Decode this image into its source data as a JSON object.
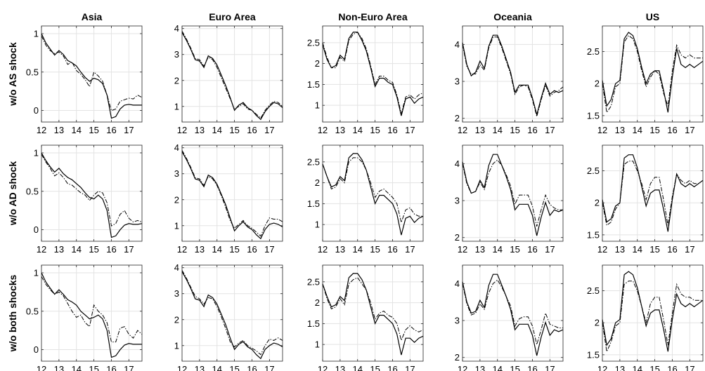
{
  "chart_data": {
    "type": "line",
    "columns": [
      "Asia",
      "Euro Area",
      "Non-Euro Area",
      "Oceania",
      "US"
    ],
    "rows": [
      "w/o AS shock",
      "w/o AD shock",
      "w/o both shocks"
    ],
    "x_ticks": [
      "12",
      "13",
      "14",
      "15",
      "16",
      "17"
    ],
    "x": [
      12.0,
      12.25,
      12.5,
      12.75,
      13.0,
      13.25,
      13.5,
      13.75,
      14.0,
      14.25,
      14.5,
      14.75,
      15.0,
      15.25,
      15.5,
      15.75,
      16.0,
      16.25,
      16.5,
      16.75,
      17.0,
      17.25,
      17.5,
      17.75
    ],
    "xlim": [
      12,
      17.75
    ],
    "grid": true,
    "line_styles": {
      "actual": "solid",
      "counterfactual": "dash-dot"
    },
    "panels": [
      [
        {
          "ylim": [
            -0.15,
            1.1
          ],
          "yticks": [
            0,
            0.5,
            1
          ],
          "ytick_labels": [
            "0",
            "0.5",
            "1"
          ],
          "actual": [
            1.0,
            0.88,
            0.8,
            0.72,
            0.78,
            0.73,
            0.65,
            0.62,
            0.58,
            0.5,
            0.43,
            0.38,
            0.42,
            0.4,
            0.35,
            0.2,
            -0.1,
            -0.08,
            0.02,
            0.07,
            0.08,
            0.07,
            0.07,
            0.07
          ],
          "counterfactual": [
            0.97,
            0.85,
            0.78,
            0.74,
            0.76,
            0.71,
            0.6,
            0.63,
            0.52,
            0.47,
            0.4,
            0.31,
            0.5,
            0.45,
            0.38,
            0.2,
            0.0,
            0.02,
            0.12,
            0.14,
            0.16,
            0.15,
            0.2,
            0.17
          ]
        },
        {
          "ylim": [
            0.4,
            4.1
          ],
          "yticks": [
            1,
            2,
            3,
            4
          ],
          "ytick_labels": [
            "1",
            "2",
            "3",
            "4"
          ],
          "actual": [
            3.85,
            3.55,
            3.2,
            2.8,
            2.75,
            2.5,
            2.95,
            2.85,
            2.6,
            2.2,
            1.8,
            1.35,
            0.85,
            1.05,
            1.15,
            0.95,
            0.85,
            0.65,
            0.5,
            0.8,
            1.0,
            1.15,
            1.1,
            0.95
          ],
          "counterfactual": [
            3.9,
            3.6,
            3.25,
            2.85,
            2.8,
            2.55,
            2.9,
            2.8,
            2.5,
            2.1,
            1.7,
            1.3,
            0.9,
            1.0,
            1.1,
            0.9,
            0.85,
            0.7,
            0.55,
            0.85,
            1.05,
            1.2,
            1.15,
            1.0
          ]
        },
        {
          "ylim": [
            0.6,
            2.9
          ],
          "yticks": [
            1,
            1.5,
            2,
            2.5
          ],
          "ytick_labels": [
            "1",
            "1.5",
            "2",
            "2.5"
          ],
          "actual": [
            2.45,
            2.1,
            1.9,
            1.95,
            2.2,
            2.1,
            2.6,
            2.75,
            2.75,
            2.55,
            2.3,
            1.9,
            1.45,
            1.65,
            1.65,
            1.55,
            1.5,
            1.2,
            0.75,
            1.15,
            1.2,
            1.05,
            1.15,
            1.2
          ],
          "counterfactual": [
            2.5,
            2.15,
            1.9,
            1.9,
            2.15,
            2.05,
            2.55,
            2.7,
            2.75,
            2.6,
            2.35,
            1.95,
            1.5,
            1.7,
            1.7,
            1.6,
            1.55,
            1.25,
            0.8,
            1.2,
            1.25,
            1.15,
            1.25,
            1.3
          ]
        },
        {
          "ylim": [
            1.9,
            4.5
          ],
          "yticks": [
            2,
            3,
            4
          ],
          "ytick_labels": [
            "2",
            "3",
            "4"
          ],
          "actual": [
            4.05,
            3.45,
            3.15,
            3.25,
            3.55,
            3.35,
            3.95,
            4.25,
            4.25,
            3.95,
            3.6,
            3.25,
            2.7,
            2.9,
            2.9,
            2.9,
            2.55,
            2.1,
            2.55,
            2.95,
            2.65,
            2.75,
            2.7,
            2.75
          ],
          "counterfactual": [
            4.0,
            3.4,
            3.2,
            3.2,
            3.45,
            3.3,
            3.9,
            4.2,
            4.2,
            3.9,
            3.55,
            3.2,
            2.65,
            2.85,
            2.9,
            2.85,
            2.5,
            2.05,
            2.5,
            2.9,
            2.6,
            2.7,
            2.75,
            2.85
          ]
        },
        {
          "ylim": [
            1.4,
            2.9
          ],
          "yticks": [
            1.5,
            2,
            2.5
          ],
          "ytick_labels": [
            "1.5",
            "2",
            "2.5"
          ],
          "actual": [
            2.05,
            1.65,
            1.75,
            2.0,
            2.05,
            2.7,
            2.8,
            2.75,
            2.55,
            2.25,
            2.0,
            2.15,
            2.2,
            2.2,
            1.9,
            1.55,
            2.1,
            2.55,
            2.3,
            2.25,
            2.3,
            2.25,
            2.3,
            2.35
          ],
          "counterfactual": [
            2.0,
            1.55,
            1.65,
            1.95,
            2.0,
            2.65,
            2.75,
            2.7,
            2.5,
            2.2,
            1.95,
            2.1,
            2.2,
            2.15,
            1.85,
            1.65,
            2.2,
            2.6,
            2.45,
            2.4,
            2.45,
            2.4,
            2.4,
            2.4
          ]
        }
      ],
      [
        {
          "ylim": [
            -0.15,
            1.1
          ],
          "yticks": [
            0,
            0.5,
            1
          ],
          "ytick_labels": [
            "0",
            "0.5",
            "1"
          ],
          "actual": [
            1.0,
            0.9,
            0.82,
            0.75,
            0.8,
            0.73,
            0.68,
            0.65,
            0.6,
            0.55,
            0.48,
            0.42,
            0.4,
            0.45,
            0.4,
            0.25,
            -0.1,
            -0.08,
            0.0,
            0.06,
            0.08,
            0.07,
            0.07,
            0.08
          ],
          "counterfactual": [
            0.98,
            0.88,
            0.8,
            0.7,
            0.74,
            0.68,
            0.6,
            0.58,
            0.53,
            0.48,
            0.45,
            0.38,
            0.45,
            0.5,
            0.48,
            0.35,
            0.05,
            0.08,
            0.2,
            0.25,
            0.15,
            0.1,
            0.12,
            0.1
          ]
        },
        {
          "ylim": [
            0.4,
            4.1
          ],
          "yticks": [
            1,
            2,
            3,
            4
          ],
          "ytick_labels": [
            "1",
            "2",
            "3",
            "4"
          ],
          "actual": [
            3.85,
            3.55,
            3.2,
            2.8,
            2.75,
            2.5,
            2.95,
            2.85,
            2.6,
            2.2,
            1.8,
            1.3,
            0.8,
            1.0,
            1.15,
            0.95,
            0.85,
            0.65,
            0.5,
            0.85,
            1.05,
            1.1,
            1.05,
            0.95
          ],
          "counterfactual": [
            3.9,
            3.6,
            3.25,
            2.85,
            2.8,
            2.55,
            2.9,
            2.8,
            2.55,
            2.15,
            1.7,
            1.2,
            0.9,
            1.05,
            1.2,
            1.0,
            0.9,
            0.75,
            0.6,
            1.0,
            1.3,
            1.25,
            1.25,
            1.15
          ]
        },
        {
          "ylim": [
            0.6,
            2.9
          ],
          "yticks": [
            1,
            1.5,
            2,
            2.5
          ],
          "ytick_labels": [
            "1",
            "1.5",
            "2",
            "2.5"
          ],
          "actual": [
            2.45,
            2.15,
            1.9,
            1.95,
            2.15,
            2.05,
            2.6,
            2.7,
            2.7,
            2.55,
            2.3,
            1.9,
            1.5,
            1.7,
            1.7,
            1.6,
            1.5,
            1.25,
            0.75,
            1.15,
            1.2,
            1.05,
            1.15,
            1.2
          ],
          "counterfactual": [
            2.45,
            2.15,
            1.85,
            1.9,
            2.1,
            2.0,
            2.5,
            2.6,
            2.6,
            2.5,
            2.3,
            2.0,
            1.65,
            1.8,
            1.85,
            1.75,
            1.65,
            1.5,
            1.05,
            1.35,
            1.4,
            1.25,
            1.2,
            1.2
          ]
        },
        {
          "ylim": [
            1.9,
            4.5
          ],
          "yticks": [
            2,
            3,
            4
          ],
          "ytick_labels": [
            "2",
            "3",
            "4"
          ],
          "actual": [
            4.05,
            3.5,
            3.2,
            3.25,
            3.55,
            3.35,
            3.95,
            4.25,
            4.25,
            3.95,
            3.65,
            3.3,
            2.75,
            2.9,
            2.9,
            2.9,
            2.6,
            2.05,
            2.55,
            2.95,
            2.6,
            2.75,
            2.7,
            2.75
          ],
          "counterfactual": [
            4.0,
            3.45,
            3.2,
            3.25,
            3.5,
            3.3,
            3.75,
            4.0,
            4.1,
            3.95,
            3.7,
            3.4,
            2.9,
            3.15,
            3.15,
            3.15,
            2.85,
            2.3,
            2.75,
            3.15,
            2.9,
            2.8,
            2.75,
            2.75
          ]
        },
        {
          "ylim": [
            1.4,
            2.9
          ],
          "yticks": [
            1.5,
            2,
            2.5
          ],
          "ytick_labels": [
            "1.5",
            "2",
            "2.5"
          ],
          "actual": [
            2.05,
            1.7,
            1.75,
            1.95,
            2.0,
            2.7,
            2.75,
            2.75,
            2.55,
            2.25,
            1.95,
            2.15,
            2.2,
            2.2,
            1.9,
            1.55,
            2.05,
            2.45,
            2.3,
            2.25,
            2.3,
            2.25,
            2.3,
            2.35
          ],
          "counterfactual": [
            2.0,
            1.65,
            1.7,
            1.9,
            2.0,
            2.6,
            2.65,
            2.65,
            2.5,
            2.3,
            2.05,
            2.3,
            2.4,
            2.4,
            2.05,
            1.65,
            2.1,
            2.45,
            2.35,
            2.3,
            2.35,
            2.3,
            2.3,
            2.35
          ]
        }
      ],
      [
        {
          "ylim": [
            -0.15,
            1.1
          ],
          "yticks": [
            0,
            0.5,
            1
          ],
          "ytick_labels": [
            "0",
            "0.5",
            "1"
          ],
          "actual": [
            1.0,
            0.88,
            0.8,
            0.72,
            0.78,
            0.72,
            0.65,
            0.62,
            0.58,
            0.5,
            0.45,
            0.4,
            0.42,
            0.45,
            0.4,
            0.25,
            -0.1,
            -0.08,
            0.0,
            0.06,
            0.08,
            0.07,
            0.07,
            0.07
          ],
          "counterfactual": [
            0.95,
            0.85,
            0.78,
            0.72,
            0.75,
            0.7,
            0.6,
            0.5,
            0.42,
            0.45,
            0.35,
            0.3,
            0.58,
            0.5,
            0.45,
            0.35,
            0.1,
            0.1,
            0.28,
            0.3,
            0.2,
            0.15,
            0.25,
            0.2
          ]
        },
        {
          "ylim": [
            0.4,
            4.1
          ],
          "yticks": [
            1,
            2,
            3,
            4
          ],
          "ytick_labels": [
            "1",
            "2",
            "3",
            "4"
          ],
          "actual": [
            3.85,
            3.55,
            3.2,
            2.8,
            2.75,
            2.5,
            2.95,
            2.85,
            2.6,
            2.2,
            1.8,
            1.3,
            0.85,
            1.05,
            1.15,
            0.95,
            0.85,
            0.65,
            0.5,
            0.85,
            1.0,
            1.1,
            1.05,
            0.95
          ],
          "counterfactual": [
            3.9,
            3.6,
            3.25,
            2.9,
            2.8,
            2.6,
            2.85,
            2.8,
            2.5,
            2.1,
            1.65,
            1.15,
            0.95,
            1.1,
            1.2,
            1.0,
            0.9,
            0.8,
            0.65,
            1.0,
            1.25,
            1.2,
            1.3,
            1.2
          ]
        },
        {
          "ylim": [
            0.6,
            2.9
          ],
          "yticks": [
            1,
            1.5,
            2,
            2.5
          ],
          "ytick_labels": [
            "1",
            "1.5",
            "2",
            "2.5"
          ],
          "actual": [
            2.45,
            2.15,
            1.9,
            1.95,
            2.15,
            2.05,
            2.6,
            2.7,
            2.7,
            2.55,
            2.3,
            1.9,
            1.5,
            1.7,
            1.7,
            1.6,
            1.5,
            1.25,
            0.75,
            1.15,
            1.15,
            1.05,
            1.15,
            1.2
          ],
          "counterfactual": [
            2.45,
            2.1,
            1.85,
            1.9,
            2.1,
            1.95,
            2.45,
            2.55,
            2.6,
            2.45,
            2.3,
            2.0,
            1.6,
            1.75,
            1.8,
            1.7,
            1.65,
            1.5,
            1.1,
            1.35,
            1.45,
            1.35,
            1.3,
            1.35
          ]
        },
        {
          "ylim": [
            1.9,
            4.5
          ],
          "yticks": [
            2,
            3,
            4
          ],
          "ytick_labels": [
            "2",
            "3",
            "4"
          ],
          "actual": [
            4.05,
            3.5,
            3.2,
            3.25,
            3.55,
            3.35,
            3.95,
            4.25,
            4.25,
            3.95,
            3.65,
            3.3,
            2.75,
            2.9,
            2.9,
            2.9,
            2.6,
            2.05,
            2.55,
            2.95,
            2.6,
            2.75,
            2.7,
            2.75
          ],
          "counterfactual": [
            4.0,
            3.45,
            3.15,
            3.2,
            3.45,
            3.3,
            3.75,
            4.0,
            4.1,
            3.9,
            3.65,
            3.4,
            2.85,
            3.05,
            3.1,
            3.1,
            2.85,
            2.35,
            2.75,
            3.2,
            2.9,
            2.85,
            2.8,
            2.8
          ]
        },
        {
          "ylim": [
            1.4,
            2.9
          ],
          "yticks": [
            1.5,
            2,
            2.5
          ],
          "ytick_labels": [
            "1.5",
            "2",
            "2.5"
          ],
          "actual": [
            2.05,
            1.65,
            1.75,
            2.0,
            2.05,
            2.75,
            2.8,
            2.75,
            2.55,
            2.25,
            1.95,
            2.15,
            2.2,
            2.2,
            1.9,
            1.55,
            2.05,
            2.45,
            2.3,
            2.25,
            2.3,
            2.25,
            2.3,
            2.35
          ],
          "counterfactual": [
            2.0,
            1.55,
            1.7,
            1.95,
            2.0,
            2.6,
            2.65,
            2.65,
            2.5,
            2.25,
            2.0,
            2.3,
            2.4,
            2.4,
            2.05,
            1.65,
            2.15,
            2.6,
            2.45,
            2.4,
            2.4,
            2.35,
            2.35,
            2.35
          ]
        }
      ]
    ]
  }
}
